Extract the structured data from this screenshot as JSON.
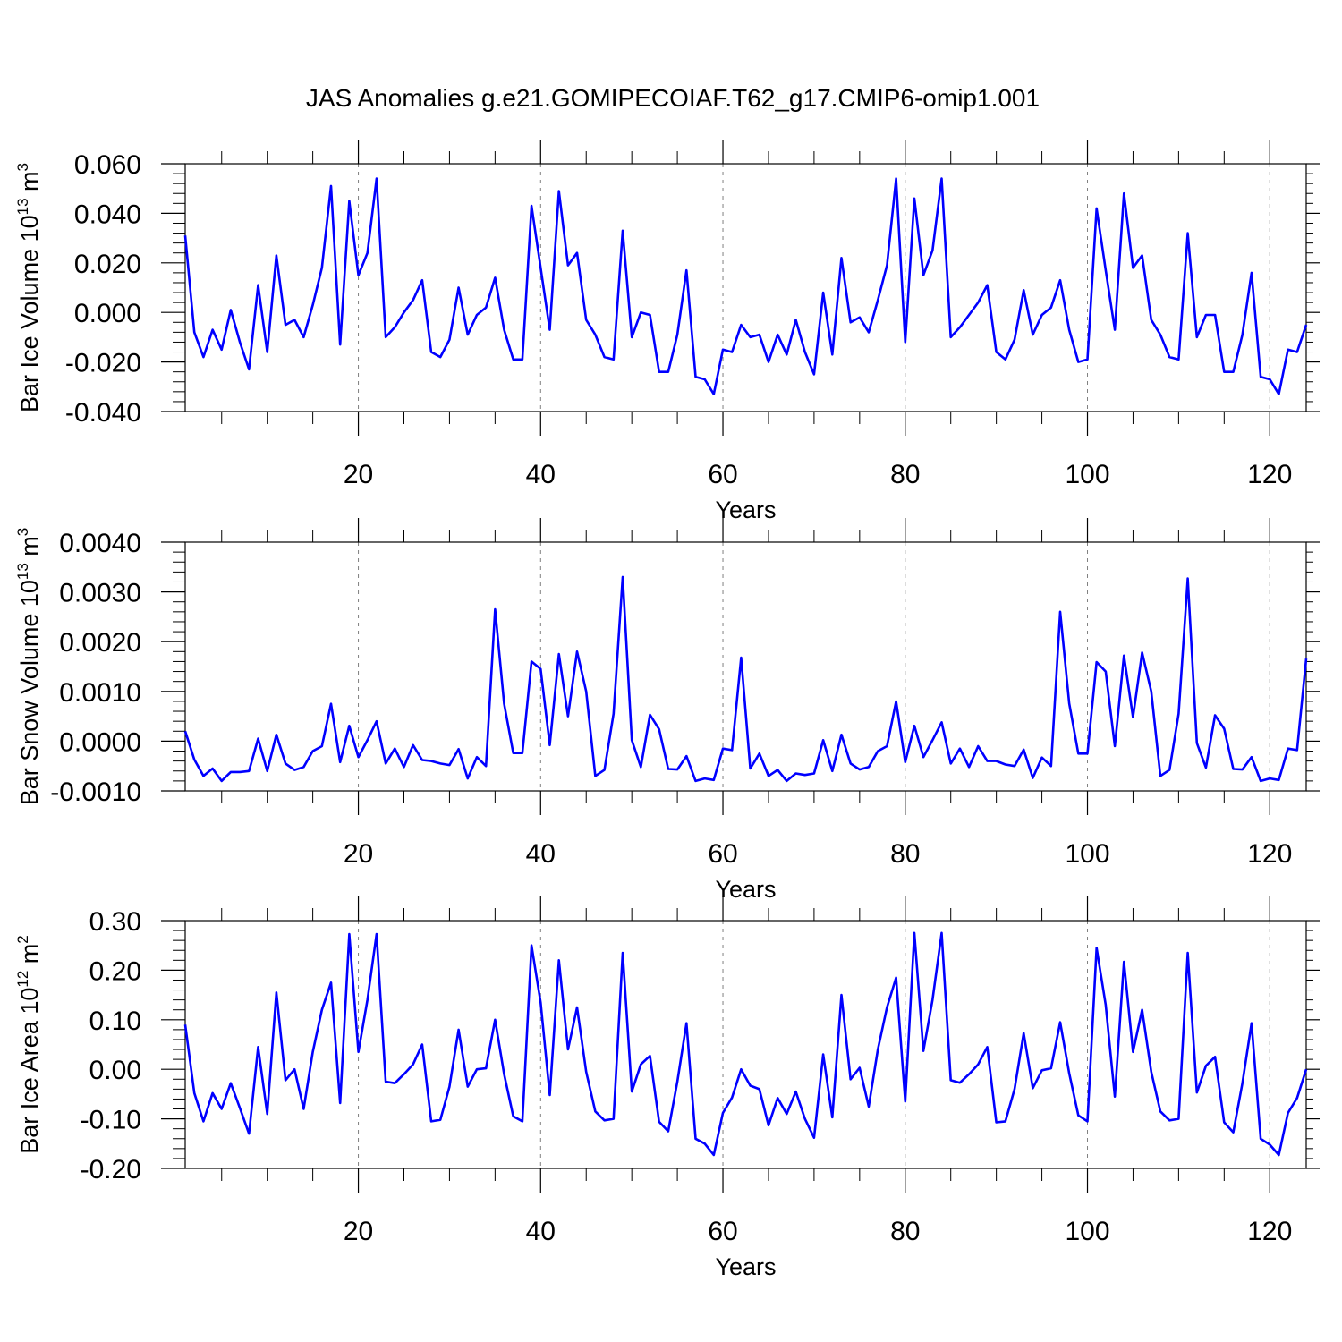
{
  "title": "JAS Anomalies g.e21.GOMIPECOIAF.T62_g17.CMIP6-omip1.001",
  "colors": {
    "line": "#0000ff",
    "axes": "#000000",
    "grid": "#808080"
  },
  "chart_data": [
    {
      "type": "line",
      "ylabel": "Bar Ice Volume 10",
      "ylabel_sup": "13",
      "ylabel_unit": " m",
      "ylabel_unit_sup": "3",
      "xlabel": "Years",
      "xlim": [
        1,
        124
      ],
      "ylim": [
        -0.04,
        0.06
      ],
      "yticks": [
        -0.04,
        -0.02,
        0.0,
        0.02,
        0.04,
        0.06
      ],
      "ytick_labels": [
        "-0.040",
        "-0.020",
        "0.000",
        "0.020",
        "0.040",
        "0.060"
      ],
      "xticks": [
        20,
        40,
        60,
        80,
        100,
        120
      ],
      "xtick_labels": [
        "20",
        "40",
        "60",
        "80",
        "100",
        "120"
      ],
      "grid_x": [
        20,
        40,
        60,
        80,
        100,
        120
      ],
      "values": [
        0.031,
        -0.008,
        -0.018,
        -0.007,
        -0.015,
        0.001,
        -0.012,
        -0.023,
        0.011,
        -0.016,
        0.023,
        -0.005,
        -0.003,
        -0.01,
        0.003,
        0.018,
        0.051,
        -0.013,
        0.045,
        0.015,
        0.024,
        0.054,
        -0.01,
        -0.006,
        -0.0,
        0.005,
        0.013,
        -0.016,
        -0.018,
        -0.011,
        0.01,
        -0.009,
        -0.001,
        0.002,
        0.014,
        -0.007,
        -0.019,
        -0.019,
        0.043,
        0.018,
        -0.007,
        0.049,
        0.019,
        0.024,
        -0.003,
        -0.009,
        -0.018,
        -0.019,
        0.033,
        -0.01,
        -0.0,
        -0.001,
        -0.024,
        -0.024,
        -0.009,
        0.017,
        -0.026,
        -0.027,
        -0.033,
        -0.015,
        -0.016,
        -0.005,
        -0.01,
        -0.009,
        -0.02,
        -0.009,
        -0.017,
        -0.003,
        -0.016,
        -0.025,
        0.008,
        -0.017,
        0.022,
        -0.004,
        -0.002,
        -0.008,
        0.005,
        0.019,
        0.054,
        -0.012,
        0.046,
        0.015,
        0.025,
        0.054,
        -0.01,
        -0.006,
        -0.001,
        0.004,
        0.011,
        -0.016,
        -0.019,
        -0.011,
        0.009,
        -0.009,
        -0.001,
        0.002,
        0.013,
        -0.007,
        -0.02,
        -0.019,
        0.042,
        0.017,
        -0.007,
        0.048,
        0.018,
        0.023,
        -0.003,
        -0.009,
        -0.018,
        -0.019,
        0.032,
        -0.01,
        -0.001,
        -0.001,
        -0.024,
        -0.024,
        -0.009,
        0.016,
        -0.026,
        -0.027,
        -0.033,
        -0.015,
        -0.016,
        -0.005
      ]
    },
    {
      "type": "line",
      "ylabel": "Bar Snow Volume 10",
      "ylabel_sup": "13",
      "ylabel_unit": " m",
      "ylabel_unit_sup": "3",
      "xlabel": "Years",
      "xlim": [
        1,
        124
      ],
      "ylim": [
        -0.001,
        0.004
      ],
      "yticks": [
        -0.001,
        0.0,
        0.001,
        0.002,
        0.003,
        0.004
      ],
      "ytick_labels": [
        "-0.0010",
        "0.0000",
        "0.0010",
        "0.0020",
        "0.0030",
        "0.0040"
      ],
      "xticks": [
        20,
        40,
        60,
        80,
        100,
        120
      ],
      "xtick_labels": [
        "20",
        "40",
        "60",
        "80",
        "100",
        "120"
      ],
      "grid_x": [
        20,
        40,
        60,
        80,
        100,
        120
      ],
      "values": [
        0.0002,
        -0.00037,
        -0.0007,
        -0.00055,
        -0.0008,
        -0.00062,
        -0.00062,
        -0.0006,
        5e-05,
        -0.0006,
        0.00013,
        -0.00045,
        -0.00058,
        -0.00052,
        -0.0002,
        -0.0001,
        0.00075,
        -0.00042,
        0.00031,
        -0.00032,
        2e-05,
        0.0004,
        -0.00045,
        -0.00015,
        -0.00052,
        -8e-05,
        -0.00038,
        -0.0004,
        -0.00045,
        -0.00048,
        -0.00016,
        -0.00075,
        -0.00032,
        -0.0005,
        0.00265,
        0.00075,
        -0.00024,
        -0.00024,
        0.0016,
        0.00145,
        -8e-05,
        0.00175,
        0.0005,
        0.0018,
        0.001,
        -0.0007,
        -0.00058,
        0.00055,
        0.0033,
        2e-05,
        -0.00052,
        0.00053,
        0.00024,
        -0.00056,
        -0.00057,
        -0.0003,
        -0.0008,
        -0.00075,
        -0.00078,
        -0.00015,
        -0.00018,
        0.00168,
        -0.00055,
        -0.00025,
        -0.0007,
        -0.00058,
        -0.0008,
        -0.00065,
        -0.00068,
        -0.00065,
        2e-05,
        -0.0006,
        0.00013,
        -0.00045,
        -0.00057,
        -0.00052,
        -0.0002,
        -0.0001,
        0.0008,
        -0.00042,
        0.00031,
        -0.00032,
        2e-05,
        0.00038,
        -0.00045,
        -0.00015,
        -0.00052,
        -0.0001,
        -0.0004,
        -0.0004,
        -0.00047,
        -0.0005,
        -0.00017,
        -0.00074,
        -0.00033,
        -0.0005,
        0.0026,
        0.00076,
        -0.00025,
        -0.00025,
        0.00159,
        0.0014,
        -0.0001,
        0.00172,
        0.00048,
        0.00178,
        0.001,
        -0.0007,
        -0.00058,
        0.00055,
        0.00327,
        -4e-05,
        -0.00053,
        0.00052,
        0.00025,
        -0.00056,
        -0.00057,
        -0.00032,
        -0.0008,
        -0.00075,
        -0.00078,
        -0.00015,
        -0.00018,
        0.00166
      ]
    },
    {
      "type": "line",
      "ylabel": "Bar Ice Area 10",
      "ylabel_sup": "12",
      "ylabel_unit": " m",
      "ylabel_unit_sup": "2",
      "xlabel": "Years",
      "xlim": [
        1,
        124
      ],
      "ylim": [
        -0.2,
        0.3
      ],
      "yticks": [
        -0.2,
        -0.1,
        0.0,
        0.1,
        0.2,
        0.3
      ],
      "ytick_labels": [
        "-0.20",
        "-0.10",
        "0.00",
        "0.10",
        "0.20",
        "0.30"
      ],
      "xticks": [
        20,
        40,
        60,
        80,
        100,
        120
      ],
      "xtick_labels": [
        "20",
        "40",
        "60",
        "80",
        "100",
        "120"
      ],
      "grid_x": [
        20,
        40,
        60,
        80,
        100,
        120
      ],
      "values": [
        0.09,
        -0.048,
        -0.105,
        -0.048,
        -0.08,
        -0.028,
        -0.078,
        -0.13,
        0.045,
        -0.09,
        0.155,
        -0.022,
        0.0,
        -0.08,
        0.035,
        0.12,
        0.175,
        -0.068,
        0.273,
        0.035,
        0.14,
        0.273,
        -0.025,
        -0.028,
        -0.01,
        0.01,
        0.05,
        -0.105,
        -0.102,
        -0.035,
        0.08,
        -0.035,
        0.0,
        0.002,
        0.1,
        -0.01,
        -0.095,
        -0.105,
        0.25,
        0.135,
        -0.052,
        0.22,
        0.04,
        0.125,
        -0.005,
        -0.085,
        -0.103,
        -0.1,
        0.235,
        -0.045,
        0.01,
        0.027,
        -0.106,
        -0.125,
        -0.025,
        0.093,
        -0.14,
        -0.15,
        -0.173,
        -0.088,
        -0.057,
        0.0,
        -0.033,
        -0.04,
        -0.113,
        -0.058,
        -0.09,
        -0.045,
        -0.1,
        -0.138,
        0.03,
        -0.097,
        0.15,
        -0.02,
        0.003,
        -0.075,
        0.04,
        0.125,
        0.185,
        -0.065,
        0.275,
        0.037,
        0.14,
        0.275,
        -0.022,
        -0.027,
        -0.01,
        0.01,
        0.045,
        -0.107,
        -0.105,
        -0.04,
        0.073,
        -0.038,
        -0.002,
        0.002,
        0.095,
        -0.008,
        -0.093,
        -0.105,
        0.245,
        0.13,
        -0.055,
        0.217,
        0.035,
        0.12,
        -0.005,
        -0.085,
        -0.103,
        -0.1,
        0.235,
        -0.047,
        0.007,
        0.025,
        -0.107,
        -0.127,
        -0.028,
        0.093,
        -0.14,
        -0.152,
        -0.173,
        -0.088,
        -0.058,
        0.0
      ]
    }
  ]
}
